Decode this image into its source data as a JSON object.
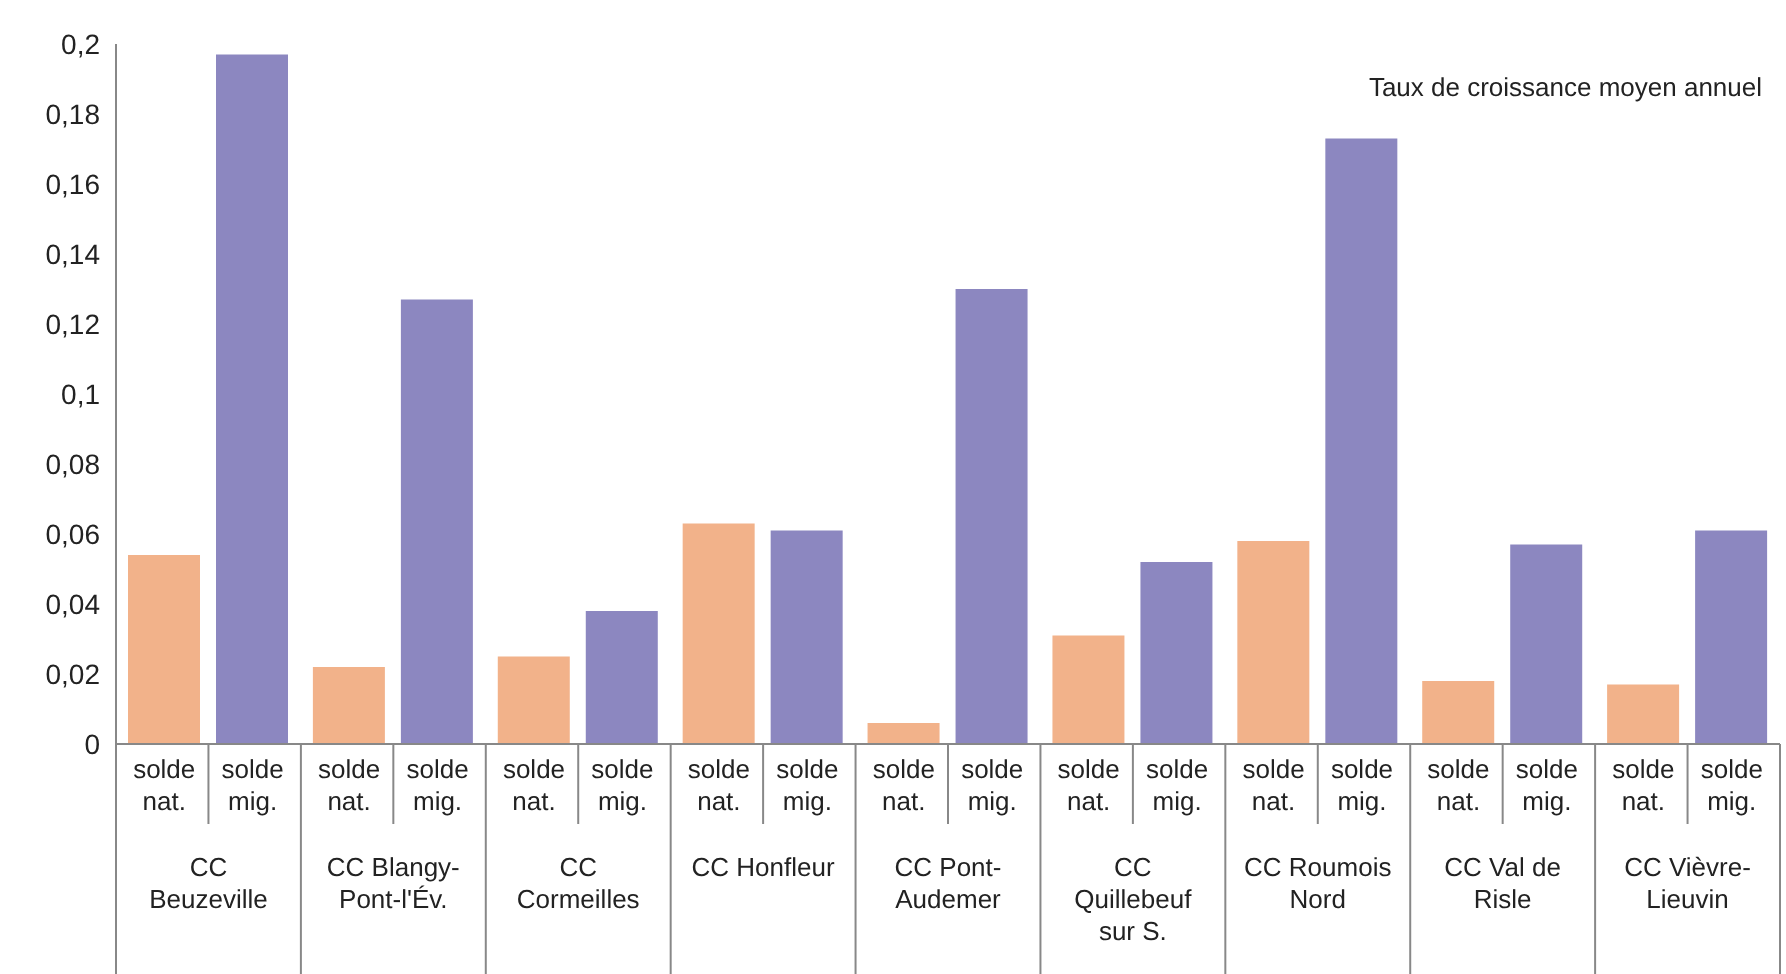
{
  "chart_data": {
    "type": "bar",
    "title": "Taux de croissance moyen annuel",
    "categories": [
      "CC Beuzeville",
      "CC Blangy-Pont-l'Év.",
      "CC Cormeilles",
      "CC Honfleur",
      "CC Pont-Audemer",
      "CC Quillebeuf sur S.",
      "CC Roumois Nord",
      "CC Val de Risle",
      "CC Vièvre-Lieuvin"
    ],
    "series": [
      {
        "name": "solde nat.",
        "color": "#f2b28a",
        "values": [
          0.054,
          0.022,
          0.025,
          0.063,
          0.006,
          0.031,
          0.058,
          0.018,
          0.017
        ]
      },
      {
        "name": "solde mig.",
        "color": "#8c87c0",
        "values": [
          0.197,
          0.127,
          0.038,
          0.061,
          0.13,
          0.052,
          0.173,
          0.057,
          0.061
        ]
      }
    ],
    "ylim": [
      0,
      0.2
    ],
    "yticks": [
      {
        "value": 0,
        "label": "0"
      },
      {
        "value": 0.02,
        "label": "0,02"
      },
      {
        "value": 0.04,
        "label": "0,04"
      },
      {
        "value": 0.06,
        "label": "0,06"
      },
      {
        "value": 0.08,
        "label": "0,08"
      },
      {
        "value": 0.1,
        "label": "0,1"
      },
      {
        "value": 0.12,
        "label": "0,12"
      },
      {
        "value": 0.14,
        "label": "0,14"
      },
      {
        "value": 0.16,
        "label": "0,16"
      },
      {
        "value": 0.18,
        "label": "0,18"
      },
      {
        "value": 0.2,
        "label": "0,2"
      }
    ],
    "grid": false,
    "legend": false
  }
}
